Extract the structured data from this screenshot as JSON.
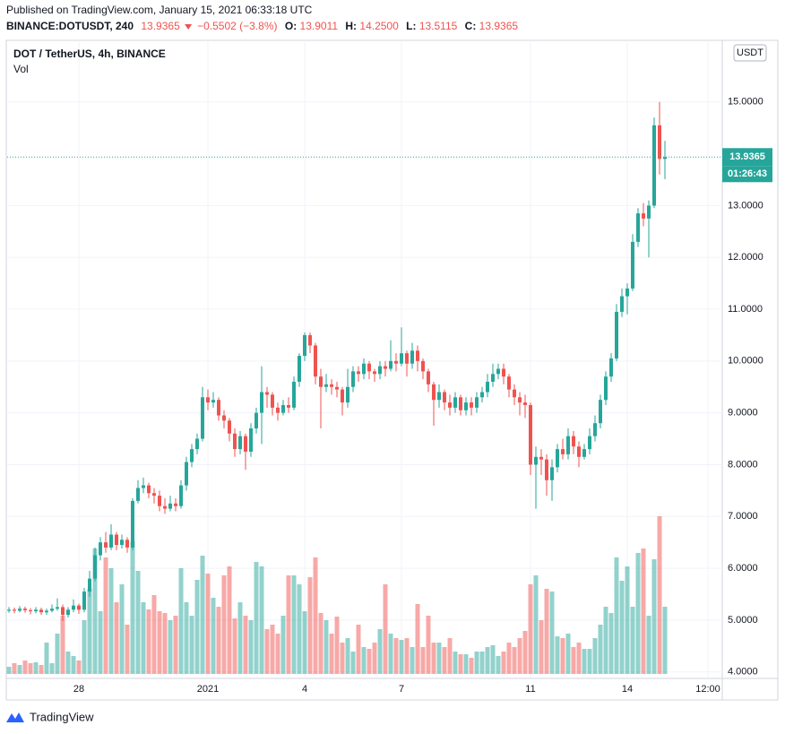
{
  "header": {
    "published": "Published on TradingView.com, January 15, 2021 06:33:18 UTC",
    "symbol": "BINANCE:DOTUSDT, 240",
    "price": "13.9365",
    "change": "−0.5502 (−3.8%)",
    "open_label": "O:",
    "open": "13.9011",
    "high_label": "H:",
    "high": "14.2500",
    "low_label": "L:",
    "low": "13.5115",
    "close_label": "C:",
    "close": "13.9365"
  },
  "chart_data": {
    "type": "candlestick",
    "title": "DOT / TetherUS, 4h, BINANCE",
    "volume_label": "Vol",
    "currency": "USDT",
    "up_color": "#26a69a",
    "down_color": "#ef5350",
    "grid": true,
    "categories": [
      null,
      null,
      null,
      null,
      null,
      null,
      null,
      null,
      null,
      null,
      null,
      null,
      null,
      "28",
      null,
      null,
      null,
      null,
      null,
      null,
      null,
      null,
      null,
      null,
      null,
      null,
      null,
      null,
      null,
      null,
      null,
      null,
      null,
      null,
      null,
      null,
      null,
      "2021",
      null,
      null,
      null,
      null,
      null,
      null,
      null,
      null,
      null,
      null,
      null,
      null,
      null,
      null,
      null,
      null,
      null,
      "4",
      null,
      null,
      null,
      null,
      null,
      null,
      null,
      null,
      null,
      null,
      null,
      null,
      null,
      null,
      null,
      null,
      null,
      "7",
      null,
      null,
      null,
      null,
      null,
      null,
      null,
      null,
      null,
      null,
      null,
      null,
      null,
      null,
      null,
      null,
      null,
      null,
      null,
      null,
      null,
      null,
      null,
      "11",
      null,
      null,
      null,
      null,
      null,
      null,
      null,
      null,
      null,
      null,
      null,
      null,
      null,
      null,
      null,
      null,
      null,
      "14",
      null,
      null,
      null,
      null,
      null,
      null,
      null,
      null,
      null,
      null,
      null,
      null,
      null,
      null,
      "12:00"
    ],
    "open": [
      5.18,
      5.2,
      5.18,
      5.22,
      5.19,
      5.17,
      5.2,
      5.15,
      5.18,
      5.22,
      5.25,
      5.1,
      5.2,
      5.28,
      5.2,
      5.55,
      5.8,
      6.25,
      6.5,
      6.4,
      6.65,
      6.45,
      6.55,
      6.4,
      7.3,
      7.55,
      7.6,
      7.45,
      7.4,
      7.2,
      7.15,
      7.25,
      7.2,
      7.6,
      8.05,
      8.3,
      8.5,
      9.3,
      9.2,
      9.25,
      8.95,
      8.85,
      8.6,
      8.3,
      8.55,
      8.25,
      8.7,
      9.0,
      9.4,
      9.35,
      9.1,
      9.0,
      9.15,
      9.1,
      9.6,
      10.1,
      10.5,
      10.3,
      9.7,
      9.5,
      9.55,
      9.5,
      9.45,
      9.2,
      9.5,
      9.8,
      9.75,
      9.95,
      9.8,
      9.75,
      9.9,
      9.85,
      10.0,
      9.95,
      10.15,
      9.95,
      10.2,
      10.0,
      9.8,
      9.55,
      9.25,
      9.4,
      9.2,
      9.1,
      9.3,
      9.05,
      9.2,
      9.1,
      9.3,
      9.4,
      9.6,
      9.75,
      9.85,
      9.7,
      9.45,
      9.3,
      9.2,
      9.15,
      8.0,
      8.15,
      8.1,
      7.7,
      7.95,
      8.3,
      8.2,
      8.55,
      8.35,
      8.15,
      8.3,
      8.55,
      8.8,
      9.25,
      9.7,
      10.05,
      10.95,
      11.25,
      11.4,
      12.3,
      12.85,
      12.75,
      13.0,
      14.55,
      13.9011,
      null,
      null,
      null,
      null,
      null,
      null,
      null,
      null
    ],
    "high": [
      5.25,
      5.24,
      5.27,
      5.26,
      5.23,
      5.25,
      5.24,
      5.22,
      5.3,
      5.42,
      5.3,
      5.25,
      5.4,
      5.32,
      5.62,
      5.95,
      6.4,
      6.6,
      6.7,
      6.85,
      6.7,
      6.65,
      6.6,
      7.35,
      7.7,
      7.75,
      7.65,
      7.55,
      7.5,
      7.35,
      7.4,
      7.35,
      7.7,
      8.15,
      8.4,
      8.6,
      9.5,
      9.45,
      9.4,
      9.3,
      9.05,
      8.9,
      8.7,
      8.65,
      8.6,
      8.8,
      9.1,
      9.9,
      9.5,
      9.4,
      9.2,
      9.25,
      9.3,
      9.7,
      10.15,
      10.55,
      10.55,
      10.35,
      9.85,
      9.75,
      9.65,
      9.6,
      9.5,
      9.85,
      9.9,
      9.9,
      10.05,
      10.0,
      9.85,
      10.0,
      10.0,
      10.4,
      10.15,
      10.65,
      10.2,
      10.35,
      10.3,
      10.05,
      9.85,
      9.6,
      9.55,
      9.45,
      9.35,
      9.4,
      9.35,
      9.3,
      9.3,
      9.4,
      9.5,
      9.75,
      9.95,
      9.95,
      9.95,
      9.75,
      9.55,
      9.4,
      9.35,
      9.2,
      8.35,
      8.3,
      8.2,
      8.1,
      8.4,
      8.5,
      8.7,
      8.65,
      8.45,
      8.4,
      8.7,
      8.95,
      9.35,
      9.8,
      10.15,
      11.1,
      11.4,
      11.5,
      12.45,
      12.95,
      13.05,
      13.1,
      14.7,
      15.0,
      14.25,
      null,
      null,
      null,
      null,
      null,
      null,
      null,
      null
    ],
    "low": [
      5.14,
      5.13,
      5.15,
      5.14,
      5.11,
      5.13,
      5.1,
      5.1,
      5.15,
      5.18,
      4.98,
      5.05,
      5.15,
      5.12,
      5.15,
      5.45,
      5.75,
      6.15,
      6.3,
      6.35,
      6.35,
      6.38,
      6.3,
      6.35,
      7.25,
      7.45,
      7.35,
      7.25,
      7.1,
      7.05,
      7.1,
      7.1,
      7.15,
      7.5,
      7.95,
      8.2,
      8.45,
      9.05,
      9.1,
      8.85,
      8.7,
      8.45,
      8.15,
      8.2,
      7.9,
      8.15,
      8.6,
      8.4,
      9.1,
      8.95,
      8.85,
      8.95,
      9.0,
      9.05,
      9.5,
      10.0,
      10.15,
      9.55,
      8.7,
      9.4,
      9.35,
      9.3,
      8.95,
      9.1,
      9.4,
      9.6,
      9.65,
      9.65,
      9.6,
      9.65,
      9.7,
      9.8,
      9.8,
      9.9,
      9.7,
      9.85,
      9.8,
      9.65,
      9.4,
      8.75,
      9.1,
      9.05,
      8.95,
      9.0,
      8.95,
      8.95,
      8.95,
      9.0,
      9.2,
      9.3,
      9.5,
      9.65,
      9.55,
      9.3,
      9.15,
      8.95,
      8.9,
      7.8,
      7.15,
      7.8,
      7.4,
      7.3,
      7.85,
      8.1,
      8.1,
      8.2,
      7.95,
      8.1,
      8.2,
      8.45,
      8.7,
      9.15,
      9.6,
      10.0,
      10.85,
      10.9,
      11.35,
      12.2,
      12.6,
      12.0,
      12.95,
      13.6,
      13.5115,
      null,
      null,
      null,
      null,
      null,
      null,
      null,
      null
    ],
    "close": [
      5.2,
      5.18,
      5.22,
      5.19,
      5.17,
      5.2,
      5.15,
      5.18,
      5.22,
      5.25,
      5.1,
      5.2,
      5.28,
      5.2,
      5.55,
      5.8,
      6.25,
      6.5,
      6.4,
      6.65,
      6.45,
      6.55,
      6.4,
      7.3,
      7.55,
      7.6,
      7.45,
      7.4,
      7.2,
      7.15,
      7.25,
      7.2,
      7.6,
      8.05,
      8.3,
      8.5,
      9.3,
      9.2,
      9.25,
      8.95,
      8.85,
      8.6,
      8.3,
      8.55,
      8.25,
      8.7,
      9.0,
      9.4,
      9.35,
      9.1,
      9.0,
      9.15,
      9.1,
      9.6,
      10.1,
      10.5,
      10.3,
      9.7,
      9.5,
      9.55,
      9.5,
      9.45,
      9.2,
      9.5,
      9.8,
      9.75,
      9.95,
      9.8,
      9.75,
      9.9,
      9.85,
      10.0,
      9.95,
      10.15,
      9.95,
      10.2,
      10.0,
      9.8,
      9.55,
      9.25,
      9.4,
      9.2,
      9.1,
      9.3,
      9.05,
      9.2,
      9.1,
      9.3,
      9.4,
      9.6,
      9.75,
      9.85,
      9.7,
      9.45,
      9.3,
      9.2,
      9.15,
      8.0,
      8.15,
      8.1,
      7.7,
      7.95,
      8.3,
      8.2,
      8.55,
      8.35,
      8.15,
      8.3,
      8.55,
      8.8,
      9.25,
      9.7,
      10.05,
      10.95,
      11.25,
      11.4,
      12.3,
      12.85,
      12.75,
      13.0,
      14.55,
      13.9011,
      13.9365,
      null,
      null,
      null,
      null,
      null,
      null,
      null,
      null
    ],
    "volume": [
      8,
      12,
      10,
      15,
      12,
      13,
      10,
      35,
      12,
      45,
      65,
      25,
      20,
      15,
      60,
      95,
      140,
      70,
      130,
      118,
      80,
      100,
      55,
      148,
      115,
      80,
      72,
      88,
      70,
      68,
      60,
      65,
      118,
      80,
      65,
      105,
      132,
      112,
      85,
      75,
      110,
      120,
      62,
      80,
      65,
      60,
      125,
      120,
      50,
      55,
      45,
      65,
      110,
      110,
      100,
      70,
      108,
      130,
      68,
      60,
      45,
      64,
      35,
      40,
      25,
      55,
      30,
      28,
      35,
      50,
      100,
      45,
      40,
      38,
      40,
      30,
      78,
      30,
      65,
      35,
      35,
      30,
      40,
      25,
      22,
      22,
      18,
      25,
      25,
      30,
      32,
      20,
      25,
      35,
      30,
      40,
      48,
      100,
      110,
      60,
      95,
      92,
      42,
      40,
      45,
      30,
      35,
      28,
      28,
      40,
      55,
      75,
      68,
      130,
      104,
      120,
      75,
      135,
      140,
      65,
      128,
      176,
      75,
      null,
      null,
      null,
      null,
      null,
      null,
      null,
      null
    ],
    "ylim": [
      3.96,
      16.19
    ],
    "yticks": [
      {
        "value": 4,
        "label": "4.0000"
      },
      {
        "value": 5,
        "label": "5.0000"
      },
      {
        "value": 6,
        "label": "6.0000"
      },
      {
        "value": 7,
        "label": "7.0000"
      },
      {
        "value": 8,
        "label": "8.0000"
      },
      {
        "value": 9,
        "label": "9.0000"
      },
      {
        "value": 10,
        "label": "10.0000"
      },
      {
        "value": 11,
        "label": "11.0000"
      },
      {
        "value": 12,
        "label": "12.0000"
      },
      {
        "value": 13,
        "label": "13.0000"
      },
      {
        "value": 15,
        "label": "15.0000"
      }
    ],
    "last_price": 13.9365,
    "countdown": "01:26:43"
  },
  "footer": {
    "logo": "TradingView"
  }
}
